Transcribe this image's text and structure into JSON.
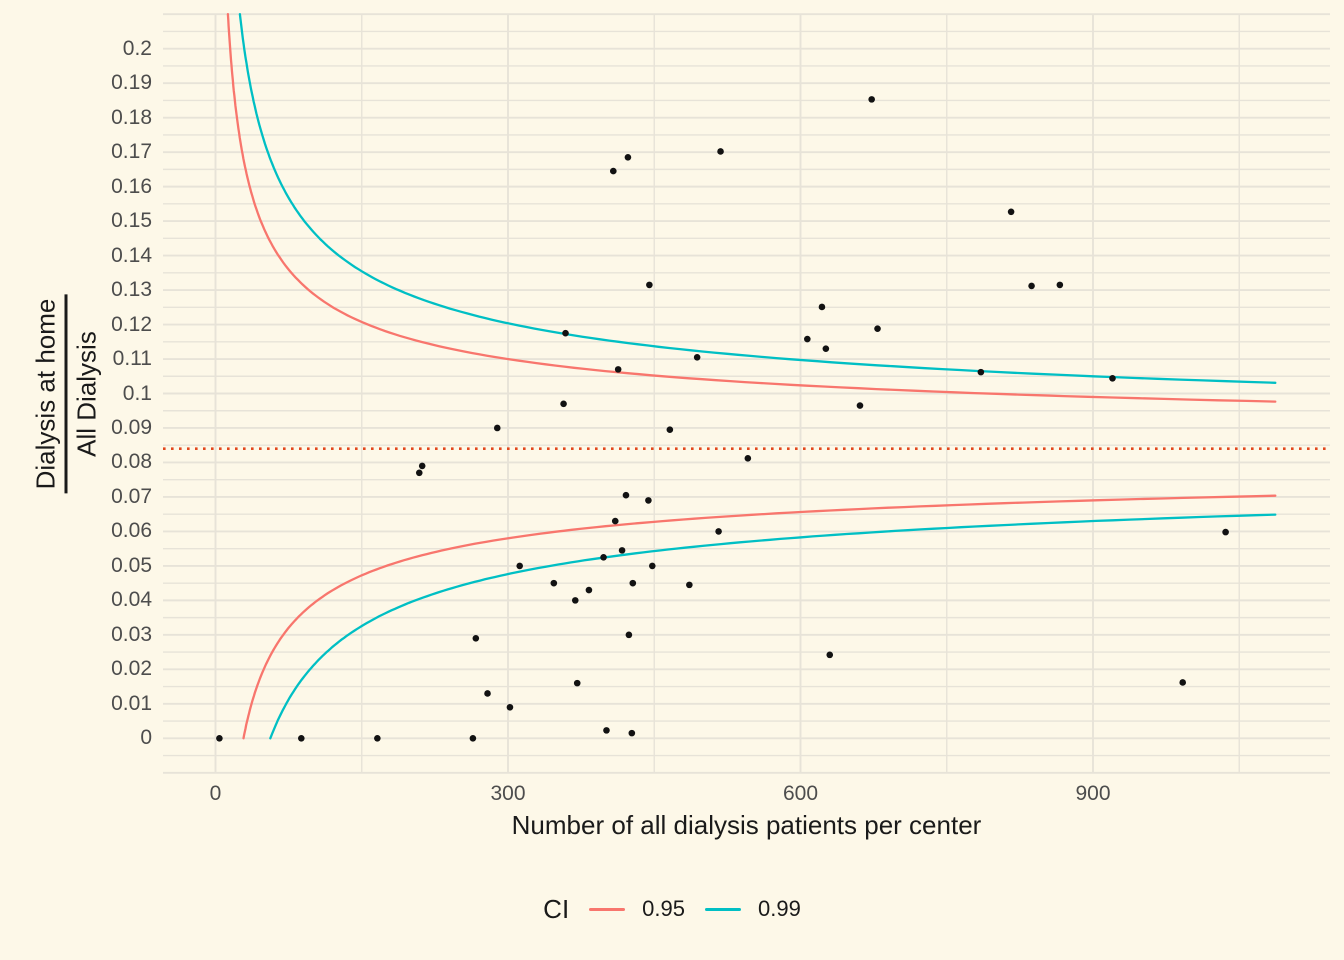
{
  "chart_data": {
    "type": "scatter",
    "description": "Funnel plot of proportion of home dialysis patients per center vs center size, with 95% and 99% control-limit curves around the overall mean (dotted line).",
    "xlabel": "Number of all dialysis patients per center",
    "ylabel_numerator": "Dialysis at home",
    "ylabel_denominator": "All Dialysis",
    "xlim": [
      -54,
      1143
    ],
    "ylim": [
      -0.01,
      0.21
    ],
    "x_ticks": {
      "values": [
        0,
        300,
        600,
        900
      ],
      "labels": [
        "0",
        "300",
        "600",
        "900"
      ]
    },
    "y_ticks": {
      "values": [
        0,
        0.01,
        0.02,
        0.03,
        0.04,
        0.05,
        0.06,
        0.07,
        0.08,
        0.09,
        0.1,
        0.11,
        0.12,
        0.13,
        0.14,
        0.15,
        0.16,
        0.17,
        0.18,
        0.19,
        0.2
      ],
      "labels": [
        "0",
        "0.01",
        "0.02",
        "0.03",
        "0.04",
        "0.05",
        "0.06",
        "0.07",
        "0.08",
        "0.09",
        "0.1",
        "0.11",
        "0.12",
        "0.13",
        "0.14",
        "0.15",
        "0.16",
        "0.17",
        "0.18",
        "0.19",
        "0.2"
      ]
    },
    "grid": {
      "horizontal_step": 0.005,
      "vertical_step": 150,
      "on": true
    },
    "reference_line": {
      "value": 0.084,
      "style": "dotted",
      "color": "#E2471D"
    },
    "funnel": {
      "center": 0.084,
      "n_end": 1087,
      "curves": [
        {
          "ci": "0.95",
          "k": 0.45,
          "color": "#F8766D"
        },
        {
          "ci": "0.99",
          "k": 0.63,
          "color": "#00BFC4"
        }
      ]
    },
    "legend": {
      "title": "CI",
      "position": "bottom",
      "items": [
        {
          "label": "0.95",
          "color": "#F8766D"
        },
        {
          "label": "0.99",
          "color": "#00BFC4"
        }
      ]
    },
    "points": [
      [
        4,
        0
      ],
      [
        88,
        0
      ],
      [
        166,
        0
      ],
      [
        209,
        0.077
      ],
      [
        212,
        0.079
      ],
      [
        264,
        0
      ],
      [
        267,
        0.029
      ],
      [
        279,
        0.013
      ],
      [
        289,
        0.09
      ],
      [
        302,
        0.009
      ],
      [
        312,
        0.05
      ],
      [
        347,
        0.045
      ],
      [
        357,
        0.097
      ],
      [
        359,
        0.1175
      ],
      [
        369,
        0.04
      ],
      [
        371,
        0.016
      ],
      [
        383,
        0.043
      ],
      [
        398,
        0.0525
      ],
      [
        401,
        0.0023
      ],
      [
        408,
        0.1645
      ],
      [
        410,
        0.063
      ],
      [
        413,
        0.107
      ],
      [
        417,
        0.0545
      ],
      [
        421,
        0.0705
      ],
      [
        423,
        0.1685
      ],
      [
        424,
        0.03
      ],
      [
        427,
        0.0015
      ],
      [
        428,
        0.045
      ],
      [
        444,
        0.069
      ],
      [
        445,
        0.1315
      ],
      [
        448,
        0.05
      ],
      [
        466,
        0.0895
      ],
      [
        486,
        0.0445
      ],
      [
        494,
        0.1105
      ],
      [
        516,
        0.06
      ],
      [
        518,
        0.1702
      ],
      [
        546,
        0.0812
      ],
      [
        607,
        0.1158
      ],
      [
        622,
        0.1251
      ],
      [
        626,
        0.113
      ],
      [
        630,
        0.0242
      ],
      [
        661,
        0.0965
      ],
      [
        673,
        0.1853
      ],
      [
        679,
        0.1188
      ],
      [
        785,
        0.1062
      ],
      [
        816,
        0.1527
      ],
      [
        837,
        0.1312
      ],
      [
        866,
        0.1315
      ],
      [
        920,
        0.1044
      ],
      [
        992,
        0.0162
      ],
      [
        1036,
        0.0598
      ]
    ],
    "colors": {
      "background": "#FDF8E8",
      "gridline": "#E7E3D8",
      "tick_text": "#4d4d4d",
      "title_text": "#1a1a1a",
      "point": "#121212"
    }
  }
}
